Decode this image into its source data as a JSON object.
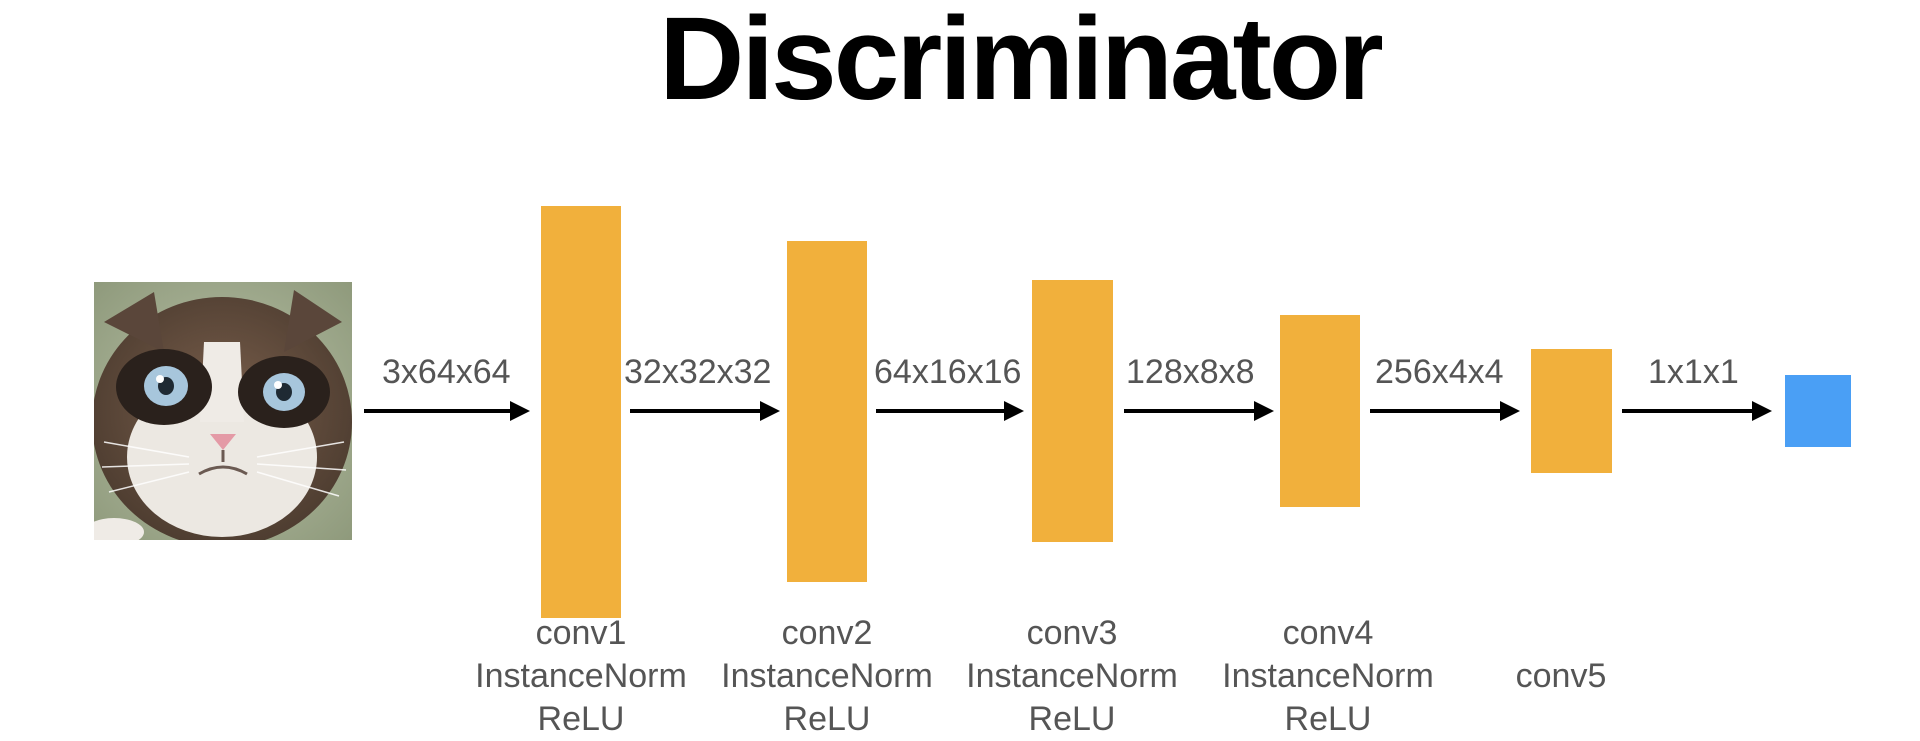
{
  "title": "Discriminator",
  "input_image": {
    "icon": "grumpy-cat-photo"
  },
  "dims": [
    "3x64x64",
    "32x32x32",
    "64x16x16",
    "128x8x8",
    "256x4x4",
    "1x1x1"
  ],
  "layers": [
    {
      "name": "conv1",
      "norm": "InstanceNorm",
      "act": "ReLU"
    },
    {
      "name": "conv2",
      "norm": "InstanceNorm",
      "act": "ReLU"
    },
    {
      "name": "conv3",
      "norm": "InstanceNorm",
      "act": "ReLU"
    },
    {
      "name": "conv4",
      "norm": "InstanceNorm",
      "act": "ReLU"
    },
    {
      "name": "conv5"
    }
  ],
  "colors": {
    "block": "#f1b03c",
    "output": "#4a9ff5",
    "label": "#555555",
    "arrow": "#000000"
  }
}
